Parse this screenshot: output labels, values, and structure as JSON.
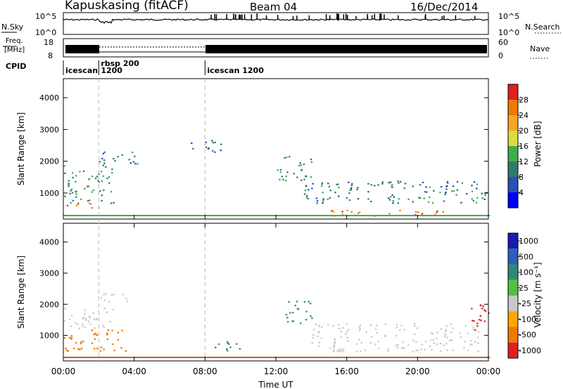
{
  "header": {
    "station": "Kapuskasing (fitACF)",
    "beam": "Beam 04",
    "date": "16/Dec/2014"
  },
  "noise_panel": {
    "left_label": "N.Sky",
    "right_label": "N.Search",
    "left_ticks": [
      "10^5",
      "10^0"
    ],
    "right_ticks": [
      "10^5",
      "10^0"
    ],
    "right_line_style": "dotted"
  },
  "freq_panel": {
    "left_label_1": "Freq.",
    "left_label_2": "[MHz]",
    "right_label": "Nave",
    "left_ticks": [
      "18",
      "8"
    ],
    "right_ticks": [
      "60",
      "0"
    ],
    "right_line_style": "dotted"
  },
  "cpid_panel": {
    "label": "CPID",
    "modes": [
      {
        "name": "icescan",
        "start_hour": 0
      },
      {
        "name": "rbsp 200\n1200",
        "start_hour": 2
      },
      {
        "name": "icescan 1200",
        "start_hour": 8
      }
    ]
  },
  "power_colorbar": {
    "label": "Power [dB]",
    "ticks": [
      "4",
      "8",
      "12",
      "16",
      "20",
      "24",
      "28"
    ],
    "colors": [
      "#0000ff",
      "#2a4fb5",
      "#2f7a6f",
      "#3fae4a",
      "#dcdc3c",
      "#f5a623",
      "#ee7a00",
      "#e02020"
    ]
  },
  "velocity_colorbar": {
    "label": "Velocity [m s⁻¹]",
    "ticks": [
      "1000",
      "500",
      "100",
      "25",
      "-25",
      "-100",
      "-500",
      "-1000"
    ],
    "colors": [
      "#1a1ab0",
      "#2b5fb8",
      "#2e8a73",
      "#55c040",
      "#c8c8c8",
      "#ffa600",
      "#f07a00",
      "#e02020"
    ]
  },
  "x_axis": {
    "label": "Time UT",
    "ticks": [
      "00:00",
      "04:00",
      "08:00",
      "12:00",
      "16:00",
      "20:00",
      "00:00"
    ]
  },
  "y_axis": {
    "label": "Slant Range [km]",
    "ticks": [
      "1000",
      "2000",
      "3000",
      "4000"
    ]
  },
  "chart_data": [
    {
      "type": "heatmap",
      "title": "Power",
      "xlabel": "Time UT",
      "ylabel": "Slant Range [km]",
      "xlim_hours": [
        0,
        24
      ],
      "ylim_km": [
        180,
        4600
      ],
      "scatter_regions": [
        {
          "t0": 0.0,
          "t1": 2.8,
          "r0": 700,
          "r1": 1900,
          "value_db": 12
        },
        {
          "t0": 0.0,
          "t1": 2.0,
          "r0": 500,
          "r1": 700,
          "value_db": 26
        },
        {
          "t0": 2.0,
          "t1": 4.2,
          "r0": 1900,
          "r1": 2400,
          "value_db": 10
        },
        {
          "t0": 7.0,
          "t1": 9.0,
          "r0": 2300,
          "r1": 2700,
          "value_db": 8
        },
        {
          "t0": 13.5,
          "t1": 24.0,
          "r0": 700,
          "r1": 1400,
          "value_db": 10
        },
        {
          "t0": 15.0,
          "t1": 21.5,
          "r0": 300,
          "r1": 500,
          "value_db": 27
        },
        {
          "t0": 12.0,
          "t1": 14.0,
          "r0": 1400,
          "r1": 2200,
          "value_db": 12
        }
      ]
    },
    {
      "type": "heatmap",
      "title": "Velocity",
      "xlabel": "Time UT",
      "ylabel": "Slant Range [km]",
      "xlim_hours": [
        0,
        24
      ],
      "ylim_km": [
        180,
        4600
      ],
      "scatter_regions": [
        {
          "t0": 0.0,
          "t1": 2.8,
          "r0": 1200,
          "r1": 1900,
          "value_ms": 0
        },
        {
          "t0": 0.0,
          "t1": 3.5,
          "r0": 500,
          "r1": 1200,
          "value_ms": -150
        },
        {
          "t0": 2.0,
          "t1": 4.0,
          "r0": 2100,
          "r1": 2400,
          "value_ms": 0
        },
        {
          "t0": 8.5,
          "t1": 10.0,
          "r0": 500,
          "r1": 900,
          "value_ms": 200
        },
        {
          "t0": 12.5,
          "t1": 14.0,
          "r0": 1400,
          "r1": 2200,
          "value_ms": 150
        },
        {
          "t0": 14.0,
          "t1": 23.5,
          "r0": 500,
          "r1": 1400,
          "value_ms": 0
        },
        {
          "t0": 23.0,
          "t1": 24.0,
          "r0": 1000,
          "r1": 2000,
          "value_ms": -700
        }
      ]
    }
  ]
}
